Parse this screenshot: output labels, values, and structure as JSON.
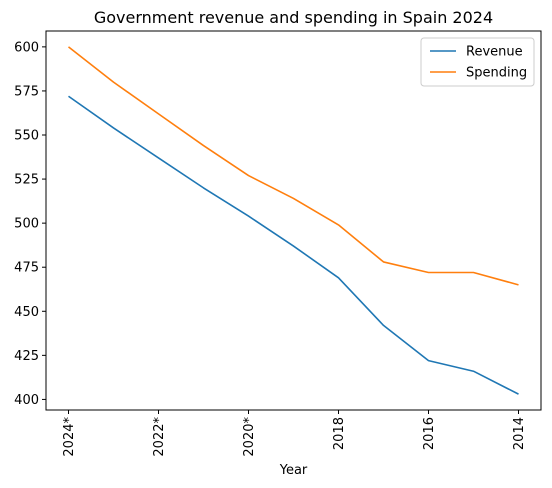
{
  "chart_data": {
    "type": "line",
    "title": "Government revenue and spending in Spain 2024",
    "xlabel": "Year",
    "ylabel": "",
    "x": [
      "2024*",
      "2023*",
      "2022*",
      "2021*",
      "2020*",
      "2019",
      "2018",
      "2017",
      "2016",
      "2015",
      "2014"
    ],
    "x_tick_labels": [
      "2024*",
      "2022*",
      "2020*",
      "2018",
      "2016",
      "2014"
    ],
    "x_tick_indices": [
      0,
      2,
      4,
      6,
      8,
      10
    ],
    "ylim": [
      394,
      609
    ],
    "y_ticks": [
      400,
      425,
      450,
      475,
      500,
      525,
      550,
      575,
      600
    ],
    "series": [
      {
        "name": "Revenue",
        "color": "#1f77b4",
        "values": [
          572,
          554,
          537,
          520,
          504,
          487,
          469,
          442,
          422,
          416,
          403
        ]
      },
      {
        "name": "Spending",
        "color": "#ff7f0e",
        "values": [
          600,
          580,
          562,
          544,
          527,
          514,
          499,
          478,
          472,
          472,
          465
        ]
      }
    ],
    "legend": "top-right",
    "grid": false
  }
}
